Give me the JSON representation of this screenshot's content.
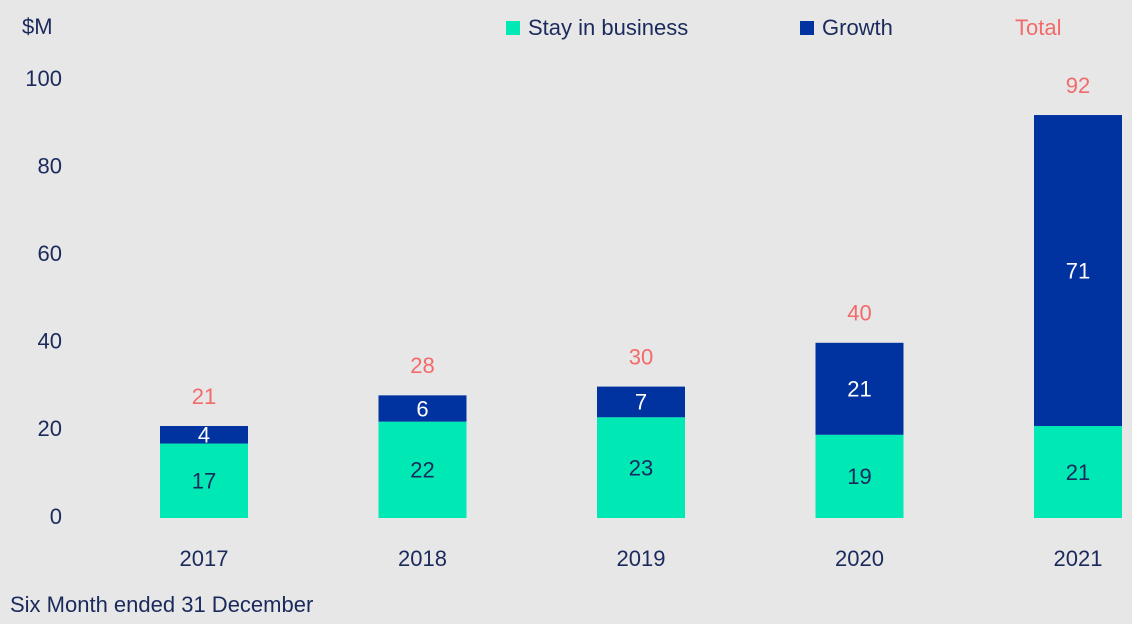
{
  "chart_data": {
    "type": "stacked-bar",
    "y_label": "$M",
    "x_label": "Six Month ended 31 December",
    "categories": [
      "2017",
      "2018",
      "2019",
      "2020",
      "2021"
    ],
    "series": [
      {
        "name": "Stay in business",
        "color": "#00e8b4",
        "values": [
          17,
          22,
          23,
          19,
          21
        ]
      },
      {
        "name": "Growth",
        "color": "#0033a0",
        "values": [
          4,
          6,
          7,
          21,
          71
        ]
      }
    ],
    "totals": {
      "name": "Total",
      "color": "#f36a6a",
      "values": [
        21,
        28,
        30,
        40,
        92
      ]
    },
    "ylim": [
      0,
      100
    ],
    "yticks": [
      0,
      20,
      40,
      60,
      80,
      100
    ],
    "grid": false
  }
}
